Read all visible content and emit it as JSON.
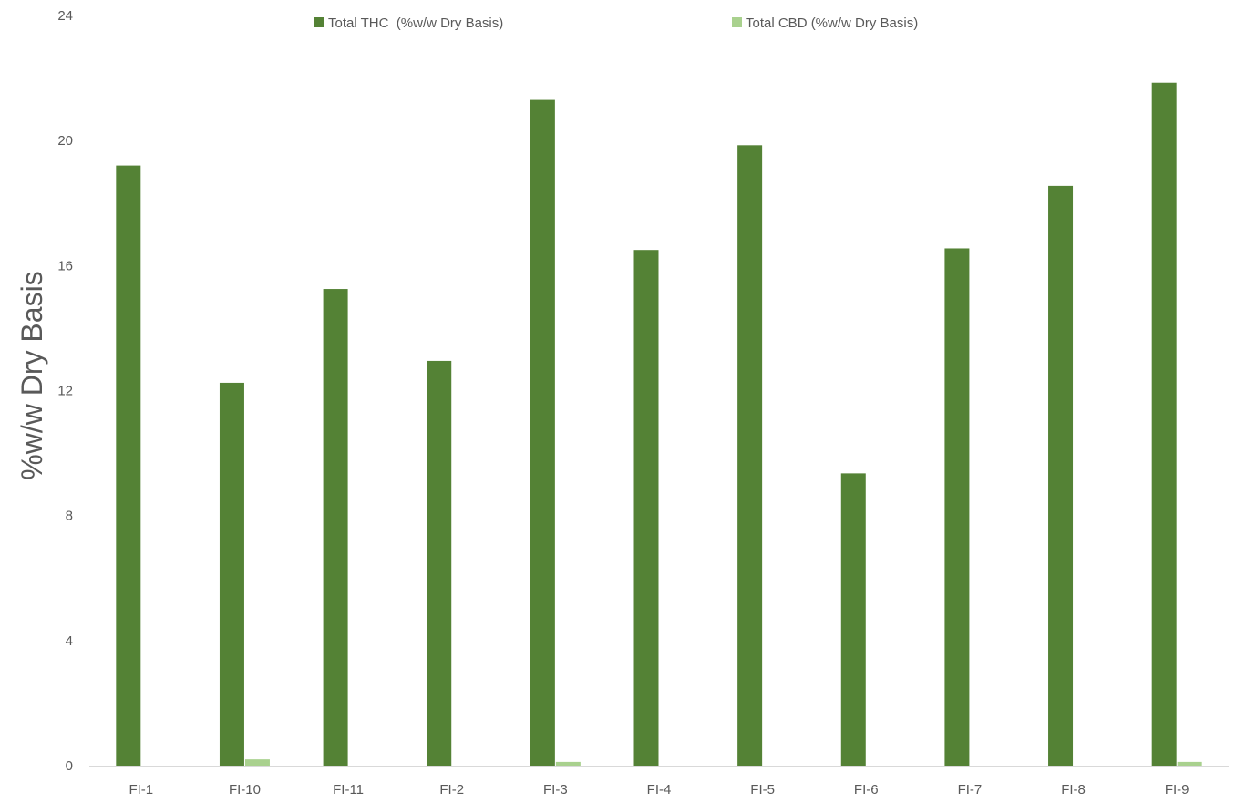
{
  "chart_data": {
    "type": "bar",
    "title": "",
    "xlabel": "",
    "ylabel": "%w/w Dry Basis",
    "ylim": [
      0,
      24
    ],
    "yticks": [
      0,
      4,
      8,
      12,
      16,
      20,
      24
    ],
    "grid": false,
    "legend_position": "top-center",
    "categories": [
      "FI-1",
      "FI-10",
      "FI-11",
      "FI-2",
      "FI-3",
      "FI-4",
      "FI-5",
      "FI-6",
      "FI-7",
      "FI-8",
      "FI-9"
    ],
    "series": [
      {
        "name": "Total THC  (%w/w Dry Basis)",
        "color": "#548235",
        "values": [
          19.2,
          12.25,
          15.25,
          12.95,
          21.3,
          16.5,
          19.85,
          9.35,
          16.55,
          18.55,
          21.85
        ]
      },
      {
        "name": "Total CBD (%w/w Dry Basis)",
        "color": "#a9d18e",
        "values": [
          0,
          0.2,
          0,
          0,
          0.12,
          0,
          0,
          0,
          0,
          0,
          0.12
        ]
      }
    ]
  }
}
